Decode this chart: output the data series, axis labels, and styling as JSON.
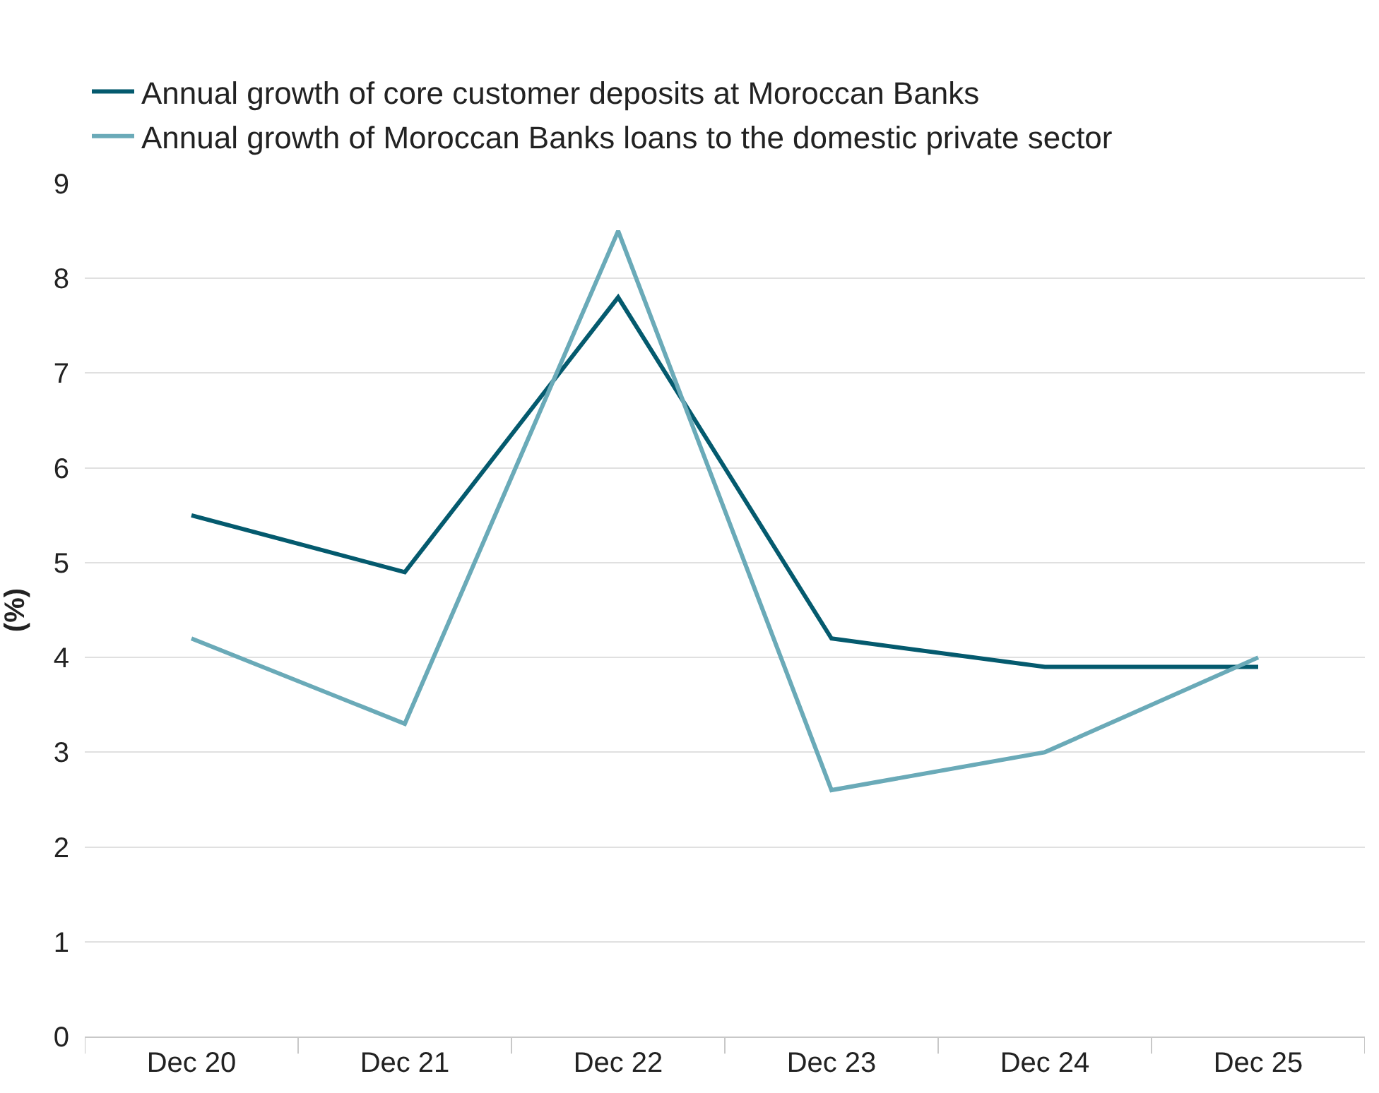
{
  "chart_data": {
    "type": "line",
    "ylabel": "(%)",
    "categories": [
      "Dec 20",
      "Dec 21",
      "Dec 22",
      "Dec 23",
      "Dec 24",
      "Dec 25"
    ],
    "series": [
      {
        "name": "Annual growth of core customer deposits at Moroccan Banks",
        "color": "#045a6e",
        "values": [
          5.5,
          4.9,
          7.8,
          4.2,
          3.9,
          3.9
        ]
      },
      {
        "name": "Annual growth of Moroccan Banks loans to the domestic private sector",
        "color": "#6aaab8",
        "values": [
          4.2,
          3.3,
          8.5,
          2.6,
          3.0,
          4.0
        ]
      }
    ],
    "ylim": [
      0,
      9
    ],
    "yticks": [
      0,
      1,
      2,
      3,
      4,
      5,
      6,
      7,
      8,
      9
    ],
    "grid": "y",
    "legend": "top left",
    "marker": "none",
    "line_style": "solid"
  }
}
